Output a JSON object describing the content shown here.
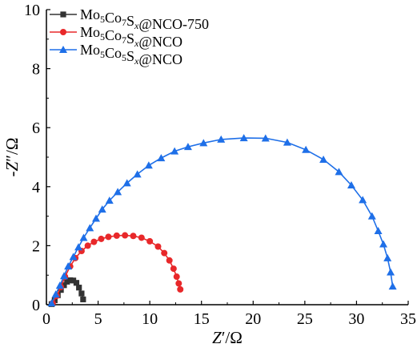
{
  "chart_data": {
    "type": "scatter",
    "title": "",
    "xlabel": {
      "prefix": "Z",
      "suffix": "′/Ω"
    },
    "ylabel": {
      "prefix": "-Z",
      "suffix": "″/Ω"
    },
    "xlim": [
      0,
      35
    ],
    "ylim": [
      0,
      10
    ],
    "xticks": [
      0,
      5,
      10,
      15,
      20,
      25,
      30,
      35
    ],
    "yticks": [
      0,
      2,
      4,
      6,
      8,
      10
    ],
    "grid": false,
    "legend_position": "top-left",
    "series": [
      {
        "name": "Mo5Co7Sx@NCO-750",
        "legend": [
          {
            "t": "Mo"
          },
          {
            "t": "5",
            "sub": true
          },
          {
            "t": "Co"
          },
          {
            "t": "7",
            "sub": true
          },
          {
            "t": "S"
          },
          {
            "t": "x",
            "sub": true,
            "italic": true
          },
          {
            "t": "@NCO-750"
          }
        ],
        "color": "#333333",
        "marker": "square",
        "x": [
          0.5,
          0.8,
          1.1,
          1.4,
          1.7,
          2.0,
          2.3,
          2.6,
          2.9,
          3.15,
          3.4,
          3.55
        ],
        "y": [
          0.02,
          0.15,
          0.32,
          0.5,
          0.66,
          0.78,
          0.83,
          0.82,
          0.74,
          0.58,
          0.38,
          0.18
        ]
      },
      {
        "name": "Mo5Co7Sx@NCO",
        "legend": [
          {
            "t": "Mo"
          },
          {
            "t": "5",
            "sub": true
          },
          {
            "t": "Co"
          },
          {
            "t": "7",
            "sub": true
          },
          {
            "t": "S"
          },
          {
            "t": "x",
            "sub": true,
            "italic": true
          },
          {
            "t": "@NCO"
          }
        ],
        "color": "#e8282a",
        "marker": "circle",
        "x": [
          0.6,
          1.0,
          1.4,
          1.8,
          2.3,
          2.8,
          3.4,
          4.0,
          4.6,
          5.3,
          6.0,
          6.8,
          7.6,
          8.4,
          9.2,
          10.0,
          10.8,
          11.4,
          11.9,
          12.3,
          12.6,
          12.8,
          12.95
        ],
        "y": [
          0.05,
          0.3,
          0.6,
          0.95,
          1.3,
          1.58,
          1.82,
          2.0,
          2.13,
          2.23,
          2.3,
          2.34,
          2.35,
          2.33,
          2.27,
          2.15,
          1.97,
          1.75,
          1.5,
          1.22,
          0.95,
          0.72,
          0.52
        ]
      },
      {
        "name": "Mo5Co5Sx@NCO",
        "legend": [
          {
            "t": "Mo"
          },
          {
            "t": "5",
            "sub": true
          },
          {
            "t": "Co"
          },
          {
            "t": "5",
            "sub": true
          },
          {
            "t": "S"
          },
          {
            "t": "x",
            "sub": true,
            "italic": true
          },
          {
            "t": "@NCO"
          }
        ],
        "color": "#1e6fe8",
        "marker": "triangle",
        "x": [
          0.5,
          0.9,
          1.3,
          1.7,
          2.1,
          2.6,
          3.1,
          3.6,
          4.2,
          4.8,
          5.4,
          6.1,
          6.9,
          7.8,
          8.8,
          9.9,
          11.1,
          12.4,
          13.7,
          15.2,
          16.9,
          19.1,
          21.2,
          23.3,
          25.1,
          26.8,
          28.3,
          29.5,
          30.6,
          31.5,
          32.1,
          32.6,
          33.0,
          33.3,
          33.5
        ],
        "y": [
          0.05,
          0.35,
          0.65,
          0.97,
          1.3,
          1.62,
          1.95,
          2.27,
          2.6,
          2.92,
          3.23,
          3.53,
          3.82,
          4.12,
          4.42,
          4.72,
          4.97,
          5.2,
          5.35,
          5.48,
          5.6,
          5.65,
          5.64,
          5.5,
          5.25,
          4.92,
          4.5,
          4.05,
          3.55,
          3.0,
          2.5,
          2.05,
          1.58,
          1.1,
          0.62
        ]
      }
    ]
  }
}
